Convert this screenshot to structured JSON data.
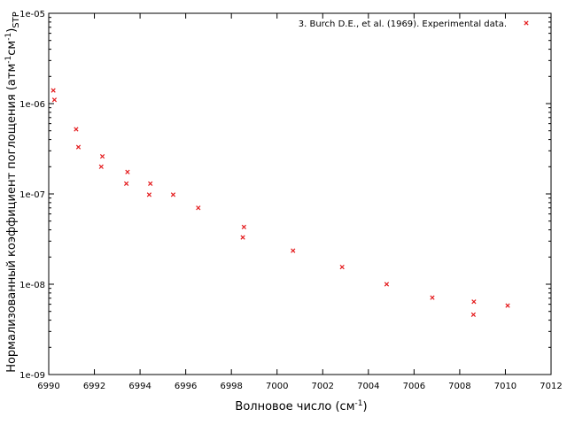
{
  "chart_data": {
    "type": "scatter",
    "xlabel": "Волновое число (см⁻¹)",
    "ylabel": "Нормализованный коэффициент поглощения (атм⁻¹см⁻¹)STP",
    "xlabel_parts": {
      "main": "Волновое число (см",
      "sup": "-1",
      "tail": ")"
    },
    "ylabel_parts": {
      "main": "Нормализованный коэффициент поглощения (атм",
      "sup1": "-1",
      "mid": "см",
      "sup2": "-1",
      "close": ")",
      "sub": "STP"
    },
    "xlim": [
      6990,
      7012
    ],
    "ylim": [
      1e-09,
      1e-05
    ],
    "yscale": "log",
    "x_ticks": [
      "6990",
      "6992",
      "6994",
      "6996",
      "6998",
      "7000",
      "7002",
      "7004",
      "7006",
      "7008",
      "7010",
      "7012"
    ],
    "y_ticks": [
      "1e-09",
      "1e-08",
      "1e-07",
      "1e-06",
      "1e-05"
    ],
    "legend_position": "top-right",
    "grid": false,
    "series": [
      {
        "name": "3. Burch D.E., et al. (1969). Experimental data.",
        "color": "#e41a1c",
        "marker": "x",
        "x": [
          6990.2,
          6990.25,
          6991.2,
          6991.3,
          6992.3,
          6992.35,
          6993.4,
          6993.45,
          6994.4,
          6994.45,
          6995.45,
          6996.55,
          6998.5,
          6998.55,
          7000.7,
          7002.85,
          7004.8,
          7006.8,
          7008.6,
          7008.62,
          7010.1
        ],
        "y": [
          1.4e-06,
          1.1e-06,
          5.2e-07,
          3.3e-07,
          2e-07,
          2.6e-07,
          1.3e-07,
          1.75e-07,
          9.8e-08,
          1.3e-07,
          9.8e-08,
          7e-08,
          3.3e-08,
          4.3e-08,
          2.35e-08,
          1.55e-08,
          1e-08,
          7.1e-09,
          4.6e-09,
          6.4e-09,
          5.8e-09
        ]
      }
    ]
  }
}
